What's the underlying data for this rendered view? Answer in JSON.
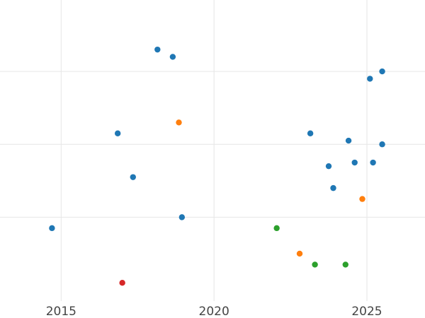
{
  "chart_data": {
    "type": "scatter",
    "title": "",
    "xlabel": "",
    "ylabel": "",
    "xlim": [
      2013.0,
      2026.9
    ],
    "ylim": [
      -0.15,
      3.98
    ],
    "grid": true,
    "x_ticks": [
      2015,
      2020,
      2025
    ],
    "x_tick_labels": [
      "2015",
      "2020",
      "2025"
    ],
    "y_gridlines": [
      1,
      2,
      3,
      4
    ],
    "colors": [
      "#1f77b4",
      "#ff7f0e",
      "#2ca02c",
      "#d62728"
    ],
    "series": [
      {
        "x": [
          2014.7,
          2016.85,
          2017.35,
          2018.15,
          2018.65,
          2018.95,
          2023.15,
          2023.75,
          2023.9,
          2024.4,
          2024.6,
          2025.1,
          2025.2,
          2025.5,
          2025.5
        ],
        "y": [
          0.85,
          2.15,
          1.55,
          3.3,
          3.2,
          1.0,
          2.15,
          1.7,
          1.4,
          2.05,
          1.75,
          2.9,
          1.75,
          3.0,
          2.0
        ]
      },
      {
        "x": [
          2018.85,
          2022.8,
          2024.85
        ],
        "y": [
          2.3,
          0.5,
          1.25
        ]
      },
      {
        "x": [
          2022.05,
          2023.3,
          2024.3
        ],
        "y": [
          0.85,
          0.35,
          0.35
        ]
      },
      {
        "x": [
          2017.0
        ],
        "y": [
          0.1
        ]
      }
    ]
  }
}
